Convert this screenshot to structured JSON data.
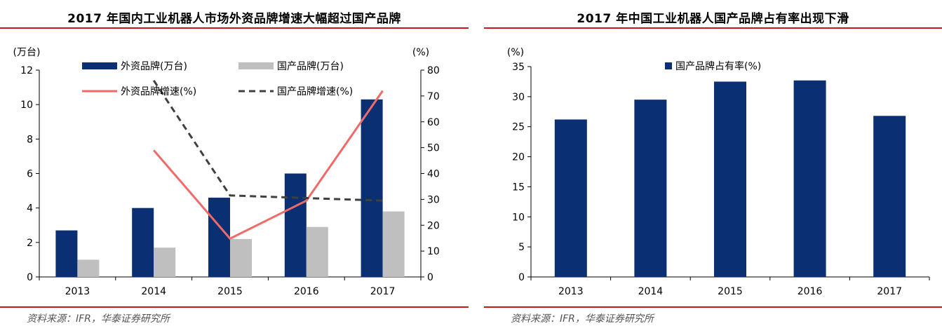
{
  "chart_data": [
    {
      "type": "bar",
      "title": "2017 年国内工业机器人市场外资品牌增速大幅超过国产品牌",
      "source": "资料来源：IFR，华泰证券研究所",
      "categories": [
        "2013",
        "2014",
        "2015",
        "2016",
        "2017"
      ],
      "y_unit_left": "(万台)",
      "y_unit_right": "(%)",
      "ylim_left": [
        0,
        12
      ],
      "yticks_left": [
        "0",
        "2",
        "4",
        "6",
        "8",
        "10",
        "12"
      ],
      "ylim_right": [
        0,
        80
      ],
      "yticks_right": [
        "0",
        "10",
        "20",
        "30",
        "40",
        "50",
        "60",
        "70",
        "80"
      ],
      "legend_position": "top",
      "series": [
        {
          "name": "外资品牌(万台)",
          "kind": "bar",
          "axis": "left",
          "color": "#0b2f73",
          "values": [
            2.7,
            4.0,
            4.6,
            6.0,
            10.3
          ]
        },
        {
          "name": "国产品牌(万台)",
          "kind": "bar",
          "axis": "left",
          "color": "#bfbfbf",
          "values": [
            1.0,
            1.7,
            2.2,
            2.9,
            3.8
          ]
        },
        {
          "name": "外资品牌增速(%)",
          "kind": "line",
          "axis": "right",
          "color": "#f06a6a",
          "dash": false,
          "values": [
            null,
            49.0,
            14.8,
            29.5,
            72.0
          ]
        },
        {
          "name": "国产品牌增速(%)",
          "kind": "line",
          "axis": "right",
          "color": "#404040",
          "dash": true,
          "values": [
            null,
            76.0,
            31.5,
            30.5,
            29.5
          ]
        }
      ]
    },
    {
      "type": "bar",
      "title": "2017 年中国工业机器人国产品牌占有率出现下滑",
      "source": "资料来源：IFR，华泰证券研究所",
      "categories": [
        "2013",
        "2014",
        "2015",
        "2016",
        "2017"
      ],
      "y_unit_left": "(%)",
      "ylim_left": [
        0,
        35
      ],
      "yticks_left": [
        "0",
        "5",
        "10",
        "15",
        "20",
        "25",
        "30",
        "35"
      ],
      "legend_position": "top",
      "series": [
        {
          "name": "国产品牌占有率(%)",
          "kind": "bar",
          "axis": "left",
          "color": "#0b2f73",
          "values": [
            26.2,
            29.5,
            32.5,
            32.7,
            26.8
          ]
        }
      ]
    }
  ]
}
